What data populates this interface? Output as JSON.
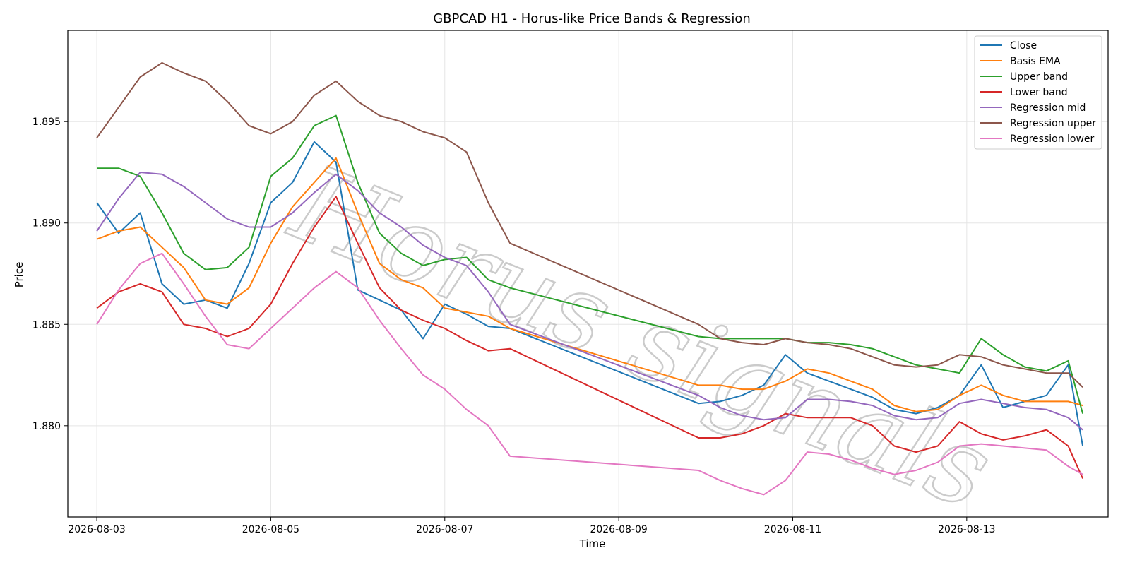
{
  "chart_data": {
    "type": "line",
    "title": "GBPCAD H1 - Horus-like Price Bands & Regression",
    "xlabel": "Time",
    "ylabel": "Price",
    "watermark": "Horus signals",
    "grid": true,
    "legend_position": "top-right",
    "xlim": [
      "2026-08-02 16:00",
      "2026-08-14 15:00"
    ],
    "ylim": [
      1.8755,
      1.8995
    ],
    "x_ticks": [
      "2026-08-03",
      "2026-08-05",
      "2026-08-07",
      "2026-08-09",
      "2026-08-11",
      "2026-08-13"
    ],
    "y_ticks": [
      "1.880",
      "1.885",
      "1.890",
      "1.895"
    ],
    "x": [
      "2026-08-03 00:00",
      "2026-08-03 06:00",
      "2026-08-03 12:00",
      "2026-08-03 18:00",
      "2026-08-04 00:00",
      "2026-08-04 06:00",
      "2026-08-04 12:00",
      "2026-08-04 18:00",
      "2026-08-05 00:00",
      "2026-08-05 06:00",
      "2026-08-05 12:00",
      "2026-08-05 18:00",
      "2026-08-06 00:00",
      "2026-08-06 06:00",
      "2026-08-06 12:00",
      "2026-08-06 18:00",
      "2026-08-07 00:00",
      "2026-08-07 06:00",
      "2026-08-07 12:00",
      "2026-08-07 18:00",
      "2026-08-09 22:00",
      "2026-08-10 04:00",
      "2026-08-10 10:00",
      "2026-08-10 16:00",
      "2026-08-10 22:00",
      "2026-08-11 04:00",
      "2026-08-11 10:00",
      "2026-08-11 16:00",
      "2026-08-11 22:00",
      "2026-08-12 04:00",
      "2026-08-12 10:00",
      "2026-08-12 16:00",
      "2026-08-12 22:00",
      "2026-08-13 04:00",
      "2026-08-13 10:00",
      "2026-08-13 16:00",
      "2026-08-13 22:00",
      "2026-08-14 04:00",
      "2026-08-14 08:00"
    ],
    "series": [
      {
        "name": "Close",
        "color": "#1f77b4",
        "values": [
          1.891,
          1.8895,
          1.8905,
          1.887,
          1.886,
          1.8862,
          1.8858,
          1.888,
          1.891,
          1.892,
          1.894,
          1.893,
          1.8867,
          1.8862,
          1.8857,
          1.8843,
          1.886,
          1.8855,
          1.8849,
          1.8848,
          1.8811,
          1.8812,
          1.8815,
          1.882,
          1.8835,
          1.8826,
          1.8822,
          1.8818,
          1.8814,
          1.8808,
          1.8806,
          1.8809,
          1.8815,
          1.883,
          1.8809,
          1.8812,
          1.8815,
          1.883,
          1.879
        ]
      },
      {
        "name": "Basis EMA",
        "color": "#ff7f0e",
        "values": [
          1.8892,
          1.8896,
          1.8898,
          1.8888,
          1.8878,
          1.8862,
          1.886,
          1.8868,
          1.889,
          1.8908,
          1.892,
          1.8932,
          1.8905,
          1.888,
          1.8872,
          1.8868,
          1.8858,
          1.8856,
          1.8854,
          1.8848,
          1.882,
          1.882,
          1.8818,
          1.8818,
          1.8822,
          1.8828,
          1.8826,
          1.8822,
          1.8818,
          1.881,
          1.8807,
          1.8808,
          1.8815,
          1.882,
          1.8815,
          1.8812,
          1.8812,
          1.8812,
          1.881
        ]
      },
      {
        "name": "Upper band",
        "color": "#2ca02c",
        "values": [
          1.8927,
          1.8927,
          1.8923,
          1.8905,
          1.8885,
          1.8877,
          1.8878,
          1.8888,
          1.8923,
          1.8932,
          1.8948,
          1.8953,
          1.892,
          1.8895,
          1.8885,
          1.8879,
          1.8882,
          1.8883,
          1.8872,
          1.8868,
          1.8844,
          1.8843,
          1.8843,
          1.8843,
          1.8843,
          1.8841,
          1.8841,
          1.884,
          1.8838,
          1.8834,
          1.883,
          1.8828,
          1.8826,
          1.8843,
          1.8835,
          1.8829,
          1.8827,
          1.8832,
          1.8806
        ]
      },
      {
        "name": "Lower band",
        "color": "#d62728",
        "values": [
          1.8858,
          1.8866,
          1.887,
          1.8866,
          1.885,
          1.8848,
          1.8844,
          1.8848,
          1.886,
          1.888,
          1.8898,
          1.8913,
          1.889,
          1.8868,
          1.8857,
          1.8852,
          1.8848,
          1.8842,
          1.8837,
          1.8838,
          1.8794,
          1.8794,
          1.8796,
          1.88,
          1.8806,
          1.8804,
          1.8804,
          1.8804,
          1.88,
          1.879,
          1.8787,
          1.879,
          1.8802,
          1.8796,
          1.8793,
          1.8795,
          1.8798,
          1.879,
          1.8774
        ]
      },
      {
        "name": "Regression mid",
        "color": "#9467bd",
        "values": [
          1.8896,
          1.8912,
          1.8925,
          1.8924,
          1.8918,
          1.891,
          1.8902,
          1.8898,
          1.8898,
          1.8905,
          1.8915,
          1.8924,
          1.8916,
          1.8905,
          1.8898,
          1.8889,
          1.8883,
          1.8879,
          1.8866,
          1.885,
          1.8815,
          1.8809,
          1.8805,
          1.8803,
          1.8804,
          1.8813,
          1.8813,
          1.8812,
          1.881,
          1.8805,
          1.8803,
          1.8804,
          1.8811,
          1.8813,
          1.8811,
          1.8809,
          1.8808,
          1.8804,
          1.8798
        ]
      },
      {
        "name": "Regression upper",
        "color": "#8c564b",
        "values": [
          1.8942,
          1.8957,
          1.8972,
          1.8979,
          1.8974,
          1.897,
          1.896,
          1.8948,
          1.8944,
          1.895,
          1.8963,
          1.897,
          1.896,
          1.8953,
          1.895,
          1.8945,
          1.8942,
          1.8935,
          1.891,
          1.889,
          1.885,
          1.8843,
          1.8841,
          1.884,
          1.8843,
          1.8841,
          1.884,
          1.8838,
          1.8834,
          1.883,
          1.8829,
          1.883,
          1.8835,
          1.8834,
          1.883,
          1.8828,
          1.8826,
          1.8826,
          1.8819
        ]
      },
      {
        "name": "Regression lower",
        "color": "#e377c2",
        "values": [
          1.885,
          1.8867,
          1.888,
          1.8885,
          1.887,
          1.8854,
          1.884,
          1.8838,
          1.8848,
          1.8858,
          1.8868,
          1.8876,
          1.8868,
          1.8852,
          1.8838,
          1.8825,
          1.8818,
          1.8808,
          1.88,
          1.8785,
          1.8778,
          1.8773,
          1.8769,
          1.8766,
          1.8773,
          1.8787,
          1.8786,
          1.8783,
          1.8779,
          1.8776,
          1.8778,
          1.8782,
          1.879,
          1.8791,
          1.879,
          1.8789,
          1.8788,
          1.878,
          1.8776
        ]
      }
    ]
  }
}
